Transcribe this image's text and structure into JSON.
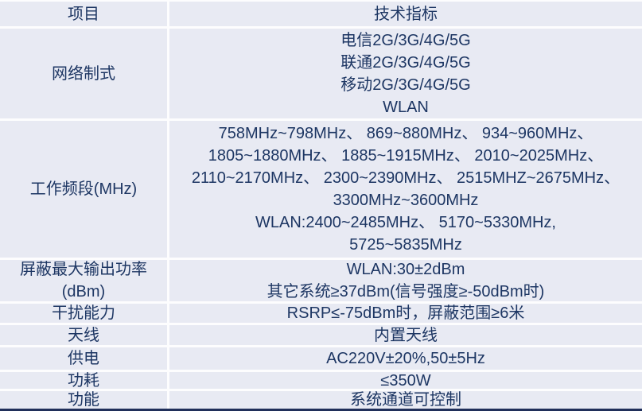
{
  "colors": {
    "cell_bg": "#e8eaf3",
    "grid_line": "#fdfdfe",
    "text": "#1d3663",
    "bottom_bar": "#202f5a"
  },
  "table": {
    "columns": [
      "项目",
      "技术指标"
    ],
    "rows": [
      {
        "label_lines": [
          "网络制式"
        ],
        "value_lines": [
          "电信2G/3G/4G/5G",
          "联通2G/3G/4G/5G",
          "移动2G/3G/4G/5G",
          "WLAN"
        ]
      },
      {
        "label_lines": [
          "工作频段(MHz)"
        ],
        "value_lines": [
          "758MHz~798MHz、 869~880MHz、 934~960MHz、",
          "1805~1880MHz、 1885~1915MHz、 2010~2025MHz、",
          "2110~2170MHz、 2300~2390MHz、 2515MHZ~2675MHz、",
          "3300MHz~3600MHz",
          "WLAN:2400~2485MHz、 5170~5330MHz,",
          "5725~5835MHz"
        ]
      },
      {
        "label_lines": [
          "屏蔽最大输出功率",
          "(dBm)"
        ],
        "value_lines": [
          "WLAN:30±2dBm",
          "其它系统≥37dBm(信号强度≥-50dBm时)"
        ]
      },
      {
        "label_lines": [
          "干扰能力"
        ],
        "value_lines": [
          "RSRP≤-75dBm时，屏蔽范围≥6米"
        ]
      },
      {
        "label_lines": [
          "天线"
        ],
        "value_lines": [
          "内置天线"
        ]
      },
      {
        "label_lines": [
          "供电"
        ],
        "value_lines": [
          "AC220V±20%,50±5Hz"
        ]
      },
      {
        "label_lines": [
          "功耗"
        ],
        "value_lines": [
          "≤350W"
        ]
      },
      {
        "label_lines": [
          "功能"
        ],
        "value_lines": [
          "系统通道可控制"
        ]
      }
    ]
  }
}
